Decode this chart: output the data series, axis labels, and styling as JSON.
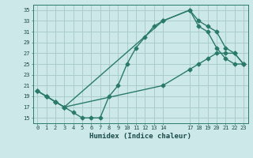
{
  "bg_color": "#cce8e8",
  "grid_color": "#aacccc",
  "line_color": "#2a7a6a",
  "xlabel": "Humidex (Indice chaleur)",
  "xlim": [
    -0.5,
    23.5
  ],
  "ylim": [
    14,
    36
  ],
  "xticks": [
    0,
    1,
    2,
    3,
    4,
    5,
    6,
    7,
    8,
    9,
    10,
    11,
    12,
    13,
    14,
    17,
    18,
    19,
    20,
    21,
    22,
    23
  ],
  "yticks": [
    15,
    17,
    19,
    21,
    23,
    25,
    27,
    29,
    31,
    33,
    35
  ],
  "line1_x": [
    0,
    1,
    2,
    3,
    4,
    5,
    6,
    7,
    8,
    9,
    10,
    11,
    12,
    13,
    14,
    17,
    18,
    19,
    20,
    21,
    22,
    23
  ],
  "line1_y": [
    20,
    19,
    18,
    17,
    16,
    15,
    15,
    15,
    19,
    21,
    25,
    28,
    30,
    32,
    33,
    35,
    32,
    31,
    28,
    26,
    25,
    25
  ],
  "line2_x": [
    0,
    1,
    2,
    3,
    14,
    17,
    18,
    19,
    20,
    21,
    22,
    23
  ],
  "line2_y": [
    20,
    19,
    18,
    17,
    33,
    35,
    33,
    32,
    31,
    28,
    27,
    25
  ],
  "line3_x": [
    0,
    1,
    2,
    3,
    14,
    17,
    18,
    19,
    20,
    21,
    22,
    23
  ],
  "line3_y": [
    20,
    19,
    18,
    17,
    21,
    24,
    25,
    26,
    27,
    27,
    27,
    25
  ]
}
